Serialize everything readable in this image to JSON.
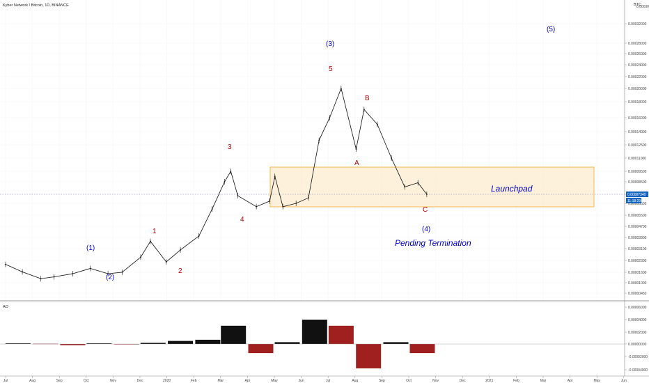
{
  "header": {
    "symbol_title": "Kyber Network / Bitcoin, 1D, BINANCE",
    "currency": "BTC"
  },
  "chart_data": [
    {
      "type": "line",
      "title": "Kyber Network / Bitcoin, 1D, BINANCE",
      "y_currency": "BTC",
      "price_axis_ticks": [
        "0.00030000",
        "0.00032000",
        "0.00028000",
        "0.00026000",
        "0.00024000",
        "0.00022000",
        "0.00020000",
        "0.00018000",
        "0.00016000",
        "0.00014000",
        "0.00012500",
        "0.00011000",
        "0.00009500",
        "0.00008500",
        "0.00007340",
        "0.00006500",
        "0.00005500",
        "0.00004700",
        "0.00003900",
        "0.00003100",
        "0.00002300",
        "0.00001600",
        "0.00001000",
        "0.00000450"
      ],
      "time_axis_ticks": [
        "Jul",
        "Aug",
        "Sep",
        "Oct",
        "Nov",
        "Dec",
        "2020",
        "Feb",
        "Mar",
        "Apr",
        "May",
        "Jun",
        "Jul",
        "Aug",
        "Sep",
        "Oct",
        "Nov",
        "Dec",
        "2021",
        "Feb",
        "Mar",
        "Apr",
        "May",
        "Jun"
      ],
      "last_price": "0.00007340",
      "countdown": "11:18:29",
      "series": [
        {
          "x": [
            "2019-07-01",
            "2019-07-20",
            "2019-08-10",
            "2019-08-25",
            "2019-09-15",
            "2019-10-05",
            "2019-10-25",
            "2019-11-10",
            "2019-12-01",
            "2019-12-12",
            "2019-12-30",
            "2020-01-15",
            "2020-02-05",
            "2020-02-20",
            "2020-03-05",
            "2020-03-12",
            "2020-03-20",
            "2020-04-10",
            "2020-04-25",
            "2020-05-01",
            "2020-05-10",
            "2020-05-25",
            "2020-06-08",
            "2020-06-20",
            "2020-07-02",
            "2020-07-15",
            "2020-08-01",
            "2020-08-10",
            "2020-08-25",
            "2020-09-10",
            "2020-09-25",
            "2020-10-10",
            "2020-10-20"
          ],
          "values": [
            2.04e-05,
            1.62e-05,
            1.2e-05,
            1.3e-05,
            1.5e-05,
            1.8e-05,
            1.5e-05,
            1.6e-05,
            2.5e-05,
            3.6e-05,
            2.2e-05,
            3e-05,
            4e-05,
            6e-05,
            8.5e-05,
            9.5e-05,
            7.2e-05,
            6.2e-05,
            6.7e-05,
            9e-05,
            6.2e-05,
            6.5e-05,
            7e-05,
            0.00013,
            0.00016,
            0.0002,
            0.00012,
            0.00017,
            0.00015,
            0.00011,
            8e-05,
            8.4e-05,
            7.34e-05
          ]
        }
      ],
      "annotations": {
        "wave_labels": [
          "(1)",
          "(2)",
          "(3)",
          "(4)",
          "(5)",
          "1",
          "2",
          "3",
          "4",
          "5",
          "A",
          "B",
          "C"
        ],
        "launchpad": "Launchpad",
        "pending": "Pending Termination"
      }
    },
    {
      "type": "bar",
      "title": "AO",
      "ticks": [
        "0.00006000",
        "0.00004000",
        "0.00002000",
        "0.00000000",
        "-0.00002000",
        "-0.00004000"
      ],
      "ylim": [
        -4.5e-05,
        6e-05
      ],
      "x": [
        "2019-07",
        "2019-08",
        "2019-09",
        "2019-10",
        "2019-11",
        "2019-12",
        "2020-01",
        "2020-02",
        "2020-03",
        "2020-04",
        "2020-05",
        "2020-06",
        "2020-07",
        "2020-08",
        "2020-09",
        "2020-10"
      ],
      "values": [
        1e-06,
        5e-07,
        -2e-06,
        1e-06,
        -5e-07,
        2e-06,
        5e-06,
        7e-06,
        3e-05,
        -1.5e-05,
        3e-06,
        4e-05,
        3e-05,
        -4e-05,
        3e-06,
        -1.5e-05
      ]
    }
  ]
}
